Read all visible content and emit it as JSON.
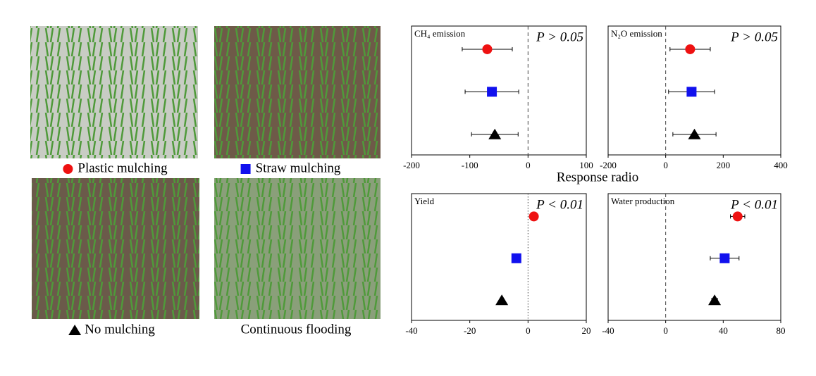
{
  "treatments": [
    {
      "name": "Plastic mulching",
      "color": "#ee1111",
      "marker": "circle"
    },
    {
      "name": "Straw mulching",
      "color": "#1111ee",
      "marker": "square"
    },
    {
      "name": "No mulching",
      "color": "#000000",
      "marker": "triangle"
    },
    {
      "name": "Continuous flooding"
    }
  ],
  "x_label": "Response radio",
  "chart_data": [
    {
      "type": "forest",
      "title": "CH₄ emission",
      "annotation": "P > 0.05",
      "values": [
        -70,
        -62,
        -57
      ],
      "errors": [
        43,
        46,
        40
      ],
      "xlim": [
        -200,
        100
      ],
      "xticks": [
        -200,
        -100,
        0,
        100
      ],
      "reference": 0,
      "reference_style": "dashed"
    },
    {
      "type": "forest",
      "title": "N₂O emission",
      "annotation": "P > 0.05",
      "values": [
        85,
        90,
        100
      ],
      "errors": [
        70,
        80,
        75
      ],
      "xlim": [
        -200,
        400
      ],
      "xticks": [
        -200,
        0,
        200,
        400
      ],
      "reference": 0,
      "reference_style": "dashed"
    },
    {
      "type": "forest",
      "title": "Yield",
      "annotation": "P < 0.01",
      "values": [
        2,
        -4,
        -9
      ],
      "errors": [
        0.6,
        0.6,
        0.6
      ],
      "xlim": [
        -40,
        20
      ],
      "xticks": [
        -40,
        -20,
        0,
        20
      ],
      "reference": 0,
      "reference_style": "dotted"
    },
    {
      "type": "forest",
      "title": "Water production",
      "annotation": "P < 0.01",
      "values": [
        50,
        41,
        34
      ],
      "errors": [
        5,
        10,
        2
      ],
      "xlim": [
        -40,
        80
      ],
      "xticks": [
        -40,
        0,
        40,
        80
      ],
      "reference": 0,
      "reference_style": "dashed"
    }
  ]
}
